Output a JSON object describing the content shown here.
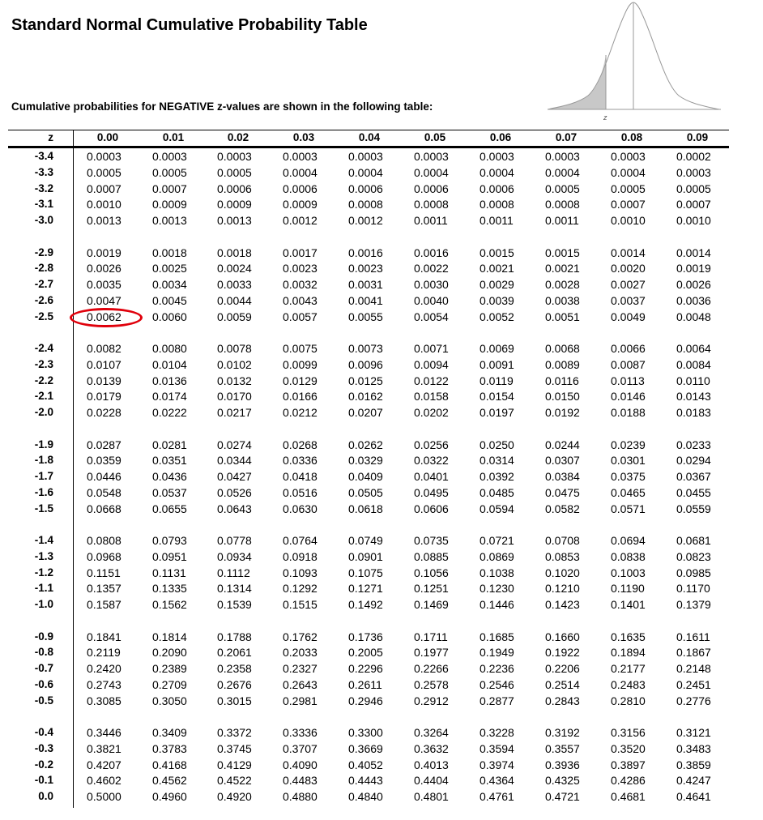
{
  "title": "Standard Normal Cumulative Probability Table",
  "subtitle": "Cumulative probabilities for NEGATIVE z-values are shown in the following table:",
  "curve": {
    "axis_label": "z"
  },
  "headers": [
    "z",
    "0.00",
    "0.01",
    "0.02",
    "0.03",
    "0.04",
    "0.05",
    "0.06",
    "0.07",
    "0.08",
    "0.09"
  ],
  "highlighted": {
    "z": "-2.5",
    "column": "0.00",
    "value": "0.0062"
  },
  "groups": [
    [
      {
        "z": "-3.4",
        "v": [
          "0.0003",
          "0.0003",
          "0.0003",
          "0.0003",
          "0.0003",
          "0.0003",
          "0.0003",
          "0.0003",
          "0.0003",
          "0.0002"
        ]
      },
      {
        "z": "-3.3",
        "v": [
          "0.0005",
          "0.0005",
          "0.0005",
          "0.0004",
          "0.0004",
          "0.0004",
          "0.0004",
          "0.0004",
          "0.0004",
          "0.0003"
        ]
      },
      {
        "z": "-3.2",
        "v": [
          "0.0007",
          "0.0007",
          "0.0006",
          "0.0006",
          "0.0006",
          "0.0006",
          "0.0006",
          "0.0005",
          "0.0005",
          "0.0005"
        ]
      },
      {
        "z": "-3.1",
        "v": [
          "0.0010",
          "0.0009",
          "0.0009",
          "0.0009",
          "0.0008",
          "0.0008",
          "0.0008",
          "0.0008",
          "0.0007",
          "0.0007"
        ]
      },
      {
        "z": "-3.0",
        "v": [
          "0.0013",
          "0.0013",
          "0.0013",
          "0.0012",
          "0.0012",
          "0.0011",
          "0.0011",
          "0.0011",
          "0.0010",
          "0.0010"
        ]
      }
    ],
    [
      {
        "z": "-2.9",
        "v": [
          "0.0019",
          "0.0018",
          "0.0018",
          "0.0017",
          "0.0016",
          "0.0016",
          "0.0015",
          "0.0015",
          "0.0014",
          "0.0014"
        ]
      },
      {
        "z": "-2.8",
        "v": [
          "0.0026",
          "0.0025",
          "0.0024",
          "0.0023",
          "0.0023",
          "0.0022",
          "0.0021",
          "0.0021",
          "0.0020",
          "0.0019"
        ]
      },
      {
        "z": "-2.7",
        "v": [
          "0.0035",
          "0.0034",
          "0.0033",
          "0.0032",
          "0.0031",
          "0.0030",
          "0.0029",
          "0.0028",
          "0.0027",
          "0.0026"
        ]
      },
      {
        "z": "-2.6",
        "v": [
          "0.0047",
          "0.0045",
          "0.0044",
          "0.0043",
          "0.0041",
          "0.0040",
          "0.0039",
          "0.0038",
          "0.0037",
          "0.0036"
        ]
      },
      {
        "z": "-2.5",
        "v": [
          "0.0062",
          "0.0060",
          "0.0059",
          "0.0057",
          "0.0055",
          "0.0054",
          "0.0052",
          "0.0051",
          "0.0049",
          "0.0048"
        ]
      }
    ],
    [
      {
        "z": "-2.4",
        "v": [
          "0.0082",
          "0.0080",
          "0.0078",
          "0.0075",
          "0.0073",
          "0.0071",
          "0.0069",
          "0.0068",
          "0.0066",
          "0.0064"
        ]
      },
      {
        "z": "-2.3",
        "v": [
          "0.0107",
          "0.0104",
          "0.0102",
          "0.0099",
          "0.0096",
          "0.0094",
          "0.0091",
          "0.0089",
          "0.0087",
          "0.0084"
        ]
      },
      {
        "z": "-2.2",
        "v": [
          "0.0139",
          "0.0136",
          "0.0132",
          "0.0129",
          "0.0125",
          "0.0122",
          "0.0119",
          "0.0116",
          "0.0113",
          "0.0110"
        ]
      },
      {
        "z": "-2.1",
        "v": [
          "0.0179",
          "0.0174",
          "0.0170",
          "0.0166",
          "0.0162",
          "0.0158",
          "0.0154",
          "0.0150",
          "0.0146",
          "0.0143"
        ]
      },
      {
        "z": "-2.0",
        "v": [
          "0.0228",
          "0.0222",
          "0.0217",
          "0.0212",
          "0.0207",
          "0.0202",
          "0.0197",
          "0.0192",
          "0.0188",
          "0.0183"
        ]
      }
    ],
    [
      {
        "z": "-1.9",
        "v": [
          "0.0287",
          "0.0281",
          "0.0274",
          "0.0268",
          "0.0262",
          "0.0256",
          "0.0250",
          "0.0244",
          "0.0239",
          "0.0233"
        ]
      },
      {
        "z": "-1.8",
        "v": [
          "0.0359",
          "0.0351",
          "0.0344",
          "0.0336",
          "0.0329",
          "0.0322",
          "0.0314",
          "0.0307",
          "0.0301",
          "0.0294"
        ]
      },
      {
        "z": "-1.7",
        "v": [
          "0.0446",
          "0.0436",
          "0.0427",
          "0.0418",
          "0.0409",
          "0.0401",
          "0.0392",
          "0.0384",
          "0.0375",
          "0.0367"
        ]
      },
      {
        "z": "-1.6",
        "v": [
          "0.0548",
          "0.0537",
          "0.0526",
          "0.0516",
          "0.0505",
          "0.0495",
          "0.0485",
          "0.0475",
          "0.0465",
          "0.0455"
        ]
      },
      {
        "z": "-1.5",
        "v": [
          "0.0668",
          "0.0655",
          "0.0643",
          "0.0630",
          "0.0618",
          "0.0606",
          "0.0594",
          "0.0582",
          "0.0571",
          "0.0559"
        ]
      }
    ],
    [
      {
        "z": "-1.4",
        "v": [
          "0.0808",
          "0.0793",
          "0.0778",
          "0.0764",
          "0.0749",
          "0.0735",
          "0.0721",
          "0.0708",
          "0.0694",
          "0.0681"
        ]
      },
      {
        "z": "-1.3",
        "v": [
          "0.0968",
          "0.0951",
          "0.0934",
          "0.0918",
          "0.0901",
          "0.0885",
          "0.0869",
          "0.0853",
          "0.0838",
          "0.0823"
        ]
      },
      {
        "z": "-1.2",
        "v": [
          "0.1151",
          "0.1131",
          "0.1112",
          "0.1093",
          "0.1075",
          "0.1056",
          "0.1038",
          "0.1020",
          "0.1003",
          "0.0985"
        ]
      },
      {
        "z": "-1.1",
        "v": [
          "0.1357",
          "0.1335",
          "0.1314",
          "0.1292",
          "0.1271",
          "0.1251",
          "0.1230",
          "0.1210",
          "0.1190",
          "0.1170"
        ]
      },
      {
        "z": "-1.0",
        "v": [
          "0.1587",
          "0.1562",
          "0.1539",
          "0.1515",
          "0.1492",
          "0.1469",
          "0.1446",
          "0.1423",
          "0.1401",
          "0.1379"
        ]
      }
    ],
    [
      {
        "z": "-0.9",
        "v": [
          "0.1841",
          "0.1814",
          "0.1788",
          "0.1762",
          "0.1736",
          "0.1711",
          "0.1685",
          "0.1660",
          "0.1635",
          "0.1611"
        ]
      },
      {
        "z": "-0.8",
        "v": [
          "0.2119",
          "0.2090",
          "0.2061",
          "0.2033",
          "0.2005",
          "0.1977",
          "0.1949",
          "0.1922",
          "0.1894",
          "0.1867"
        ]
      },
      {
        "z": "-0.7",
        "v": [
          "0.2420",
          "0.2389",
          "0.2358",
          "0.2327",
          "0.2296",
          "0.2266",
          "0.2236",
          "0.2206",
          "0.2177",
          "0.2148"
        ]
      },
      {
        "z": "-0.6",
        "v": [
          "0.2743",
          "0.2709",
          "0.2676",
          "0.2643",
          "0.2611",
          "0.2578",
          "0.2546",
          "0.2514",
          "0.2483",
          "0.2451"
        ]
      },
      {
        "z": "-0.5",
        "v": [
          "0.3085",
          "0.3050",
          "0.3015",
          "0.2981",
          "0.2946",
          "0.2912",
          "0.2877",
          "0.2843",
          "0.2810",
          "0.2776"
        ]
      }
    ],
    [
      {
        "z": "-0.4",
        "v": [
          "0.3446",
          "0.3409",
          "0.3372",
          "0.3336",
          "0.3300",
          "0.3264",
          "0.3228",
          "0.3192",
          "0.3156",
          "0.3121"
        ]
      },
      {
        "z": "-0.3",
        "v": [
          "0.3821",
          "0.3783",
          "0.3745",
          "0.3707",
          "0.3669",
          "0.3632",
          "0.3594",
          "0.3557",
          "0.3520",
          "0.3483"
        ]
      },
      {
        "z": "-0.2",
        "v": [
          "0.4207",
          "0.4168",
          "0.4129",
          "0.4090",
          "0.4052",
          "0.4013",
          "0.3974",
          "0.3936",
          "0.3897",
          "0.3859"
        ]
      },
      {
        "z": "-0.1",
        "v": [
          "0.4602",
          "0.4562",
          "0.4522",
          "0.4483",
          "0.4443",
          "0.4404",
          "0.4364",
          "0.4325",
          "0.4286",
          "0.4247"
        ]
      },
      {
        "z": "0.0",
        "v": [
          "0.5000",
          "0.4960",
          "0.4920",
          "0.4880",
          "0.4840",
          "0.4801",
          "0.4761",
          "0.4721",
          "0.4681",
          "0.4641"
        ]
      }
    ]
  ],
  "colors": {
    "highlight": "#e0000b",
    "shade": "#c8c8c8",
    "curve": "#999999"
  }
}
